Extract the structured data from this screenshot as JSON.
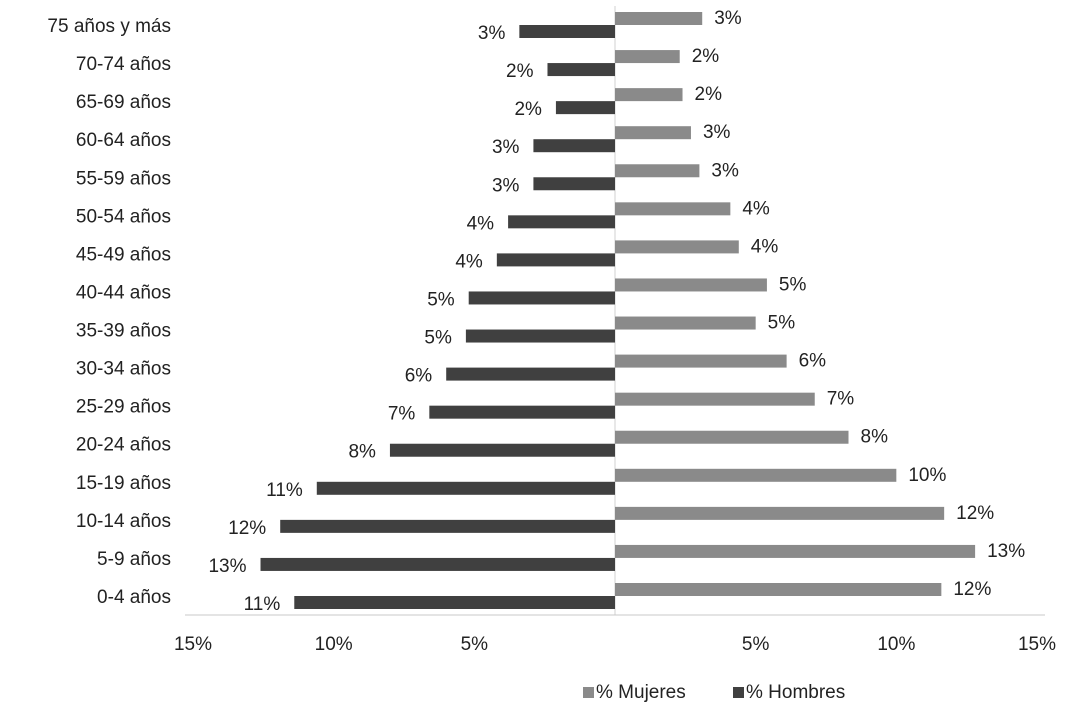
{
  "chart_data": {
    "type": "bar",
    "orientation": "horizontal",
    "layout": "diverging",
    "categories": [
      "75 años y más",
      "70-74 años",
      "65-69 años",
      "60-64 años",
      "55-59 años",
      "50-54 años",
      "45-49 años",
      "40-44 años",
      "35-39 años",
      "30-34 años",
      "25-29 años",
      "20-24 años",
      "15-19 años",
      "10-14 años",
      "5-9 años",
      "0-4 años"
    ],
    "series": [
      {
        "name": "% Mujeres",
        "color": "#8a8a8a",
        "values": [
          3.1,
          2.3,
          2.4,
          2.7,
          3.0,
          4.1,
          4.4,
          5.4,
          5.0,
          6.1,
          7.1,
          8.3,
          10.0,
          11.7,
          12.8,
          11.6
        ],
        "value_labels": [
          "3%",
          "2%",
          "2%",
          "3%",
          "3%",
          "4%",
          "4%",
          "5%",
          "5%",
          "6%",
          "7%",
          "8%",
          "10%",
          "12%",
          "13%",
          "12%"
        ]
      },
      {
        "name": "% Hombres",
        "color": "#404040",
        "values": [
          -3.4,
          -2.4,
          -2.1,
          -2.9,
          -2.9,
          -3.8,
          -4.2,
          -5.2,
          -5.3,
          -6.0,
          -6.6,
          -8.0,
          -10.6,
          -11.9,
          -12.6,
          -11.4
        ],
        "value_labels": [
          "3%",
          "2%",
          "2%",
          "3%",
          "3%",
          "4%",
          "4%",
          "5%",
          "5%",
          "6%",
          "7%",
          "8%",
          "11%",
          "12%",
          "13%",
          "11%"
        ]
      }
    ],
    "xlim": [
      -15,
      15
    ],
    "xticks": [
      {
        "value": -15,
        "label": "15%"
      },
      {
        "value": -10,
        "label": "10%"
      },
      {
        "value": -5,
        "label": "5%"
      },
      {
        "value": 5,
        "label": "5%"
      },
      {
        "value": 10,
        "label": "10%"
      },
      {
        "value": 15,
        "label": "15%"
      }
    ],
    "legend": "bottom",
    "grid": false
  }
}
